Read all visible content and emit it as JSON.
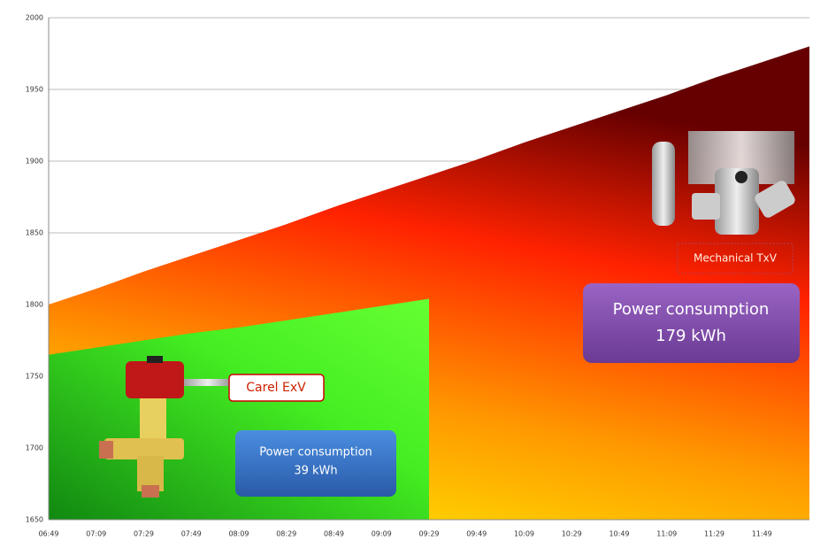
{
  "chart_data": {
    "type": "area",
    "categories": [
      "06:49",
      "07:09",
      "07:29",
      "07:49",
      "08:09",
      "08:29",
      "08:49",
      "09:09",
      "09:29",
      "09:49",
      "10:09",
      "10:29",
      "10:49",
      "11:09",
      "11:29",
      "11:49",
      null
    ],
    "series": [
      {
        "name": "Mechanical TxV",
        "color": "#ff2200",
        "values": [
          1800,
          1811,
          1823,
          1834,
          1845,
          1856,
          1868,
          1879,
          1890,
          1901,
          1913,
          1924,
          1935,
          1946,
          1958,
          1969,
          1980
        ]
      },
      {
        "name": "Carel ExV",
        "color": "#44ee22",
        "values": [
          1765,
          1770,
          1775,
          1780,
          1784,
          1789,
          1794,
          1799,
          1804,
          null,
          null,
          null,
          null,
          null,
          null,
          null,
          null
        ]
      }
    ],
    "ylim": [
      1650,
      2000
    ],
    "yticks": [
      1650,
      1700,
      1750,
      1800,
      1850,
      1900,
      1950,
      2000
    ],
    "grid": true,
    "annotations": {
      "exv_box": [
        "Power consumption",
        "39 kWh"
      ],
      "txv_box": [
        "Power consumption",
        "179 kWh"
      ]
    }
  }
}
